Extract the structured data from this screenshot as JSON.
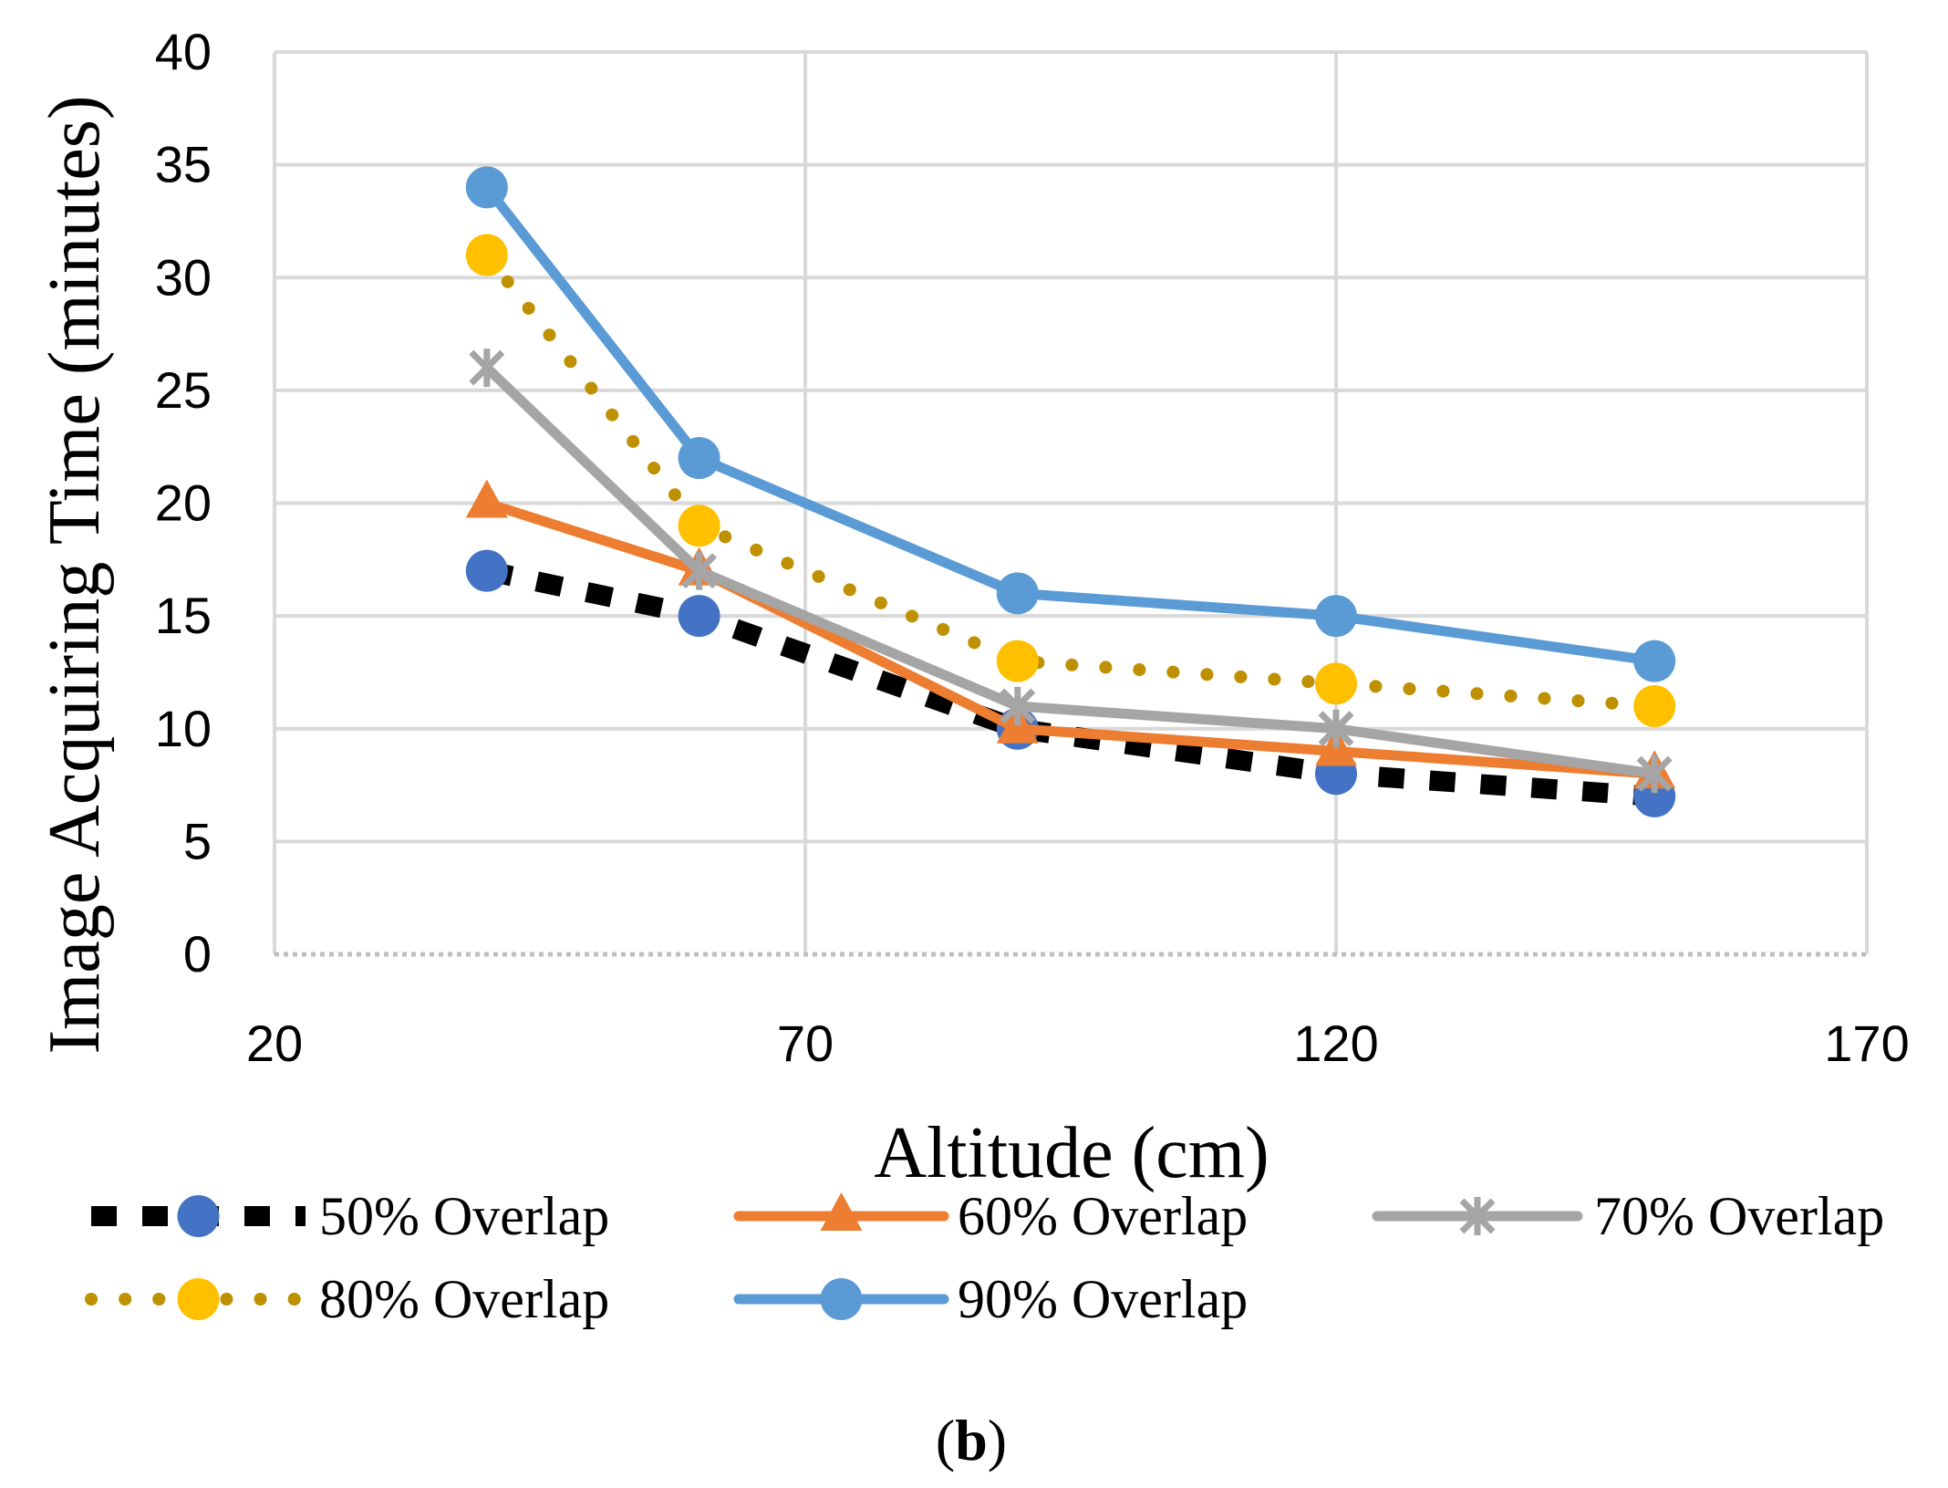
{
  "chart_data": {
    "type": "line",
    "xlabel": "Altitude (cm)",
    "ylabel": "Image Acquiring Time (minutes)",
    "xlim": [
      20,
      170
    ],
    "ylim": [
      0,
      40
    ],
    "x_ticks": [
      20,
      70,
      120,
      170
    ],
    "y_ticks": [
      0,
      5,
      10,
      15,
      20,
      25,
      30,
      35,
      40
    ],
    "grid": true,
    "legend_position": "bottom",
    "x": [
      40,
      60,
      90,
      120,
      150
    ],
    "series": [
      {
        "name": "50% Overlap",
        "values": [
          17,
          15,
          10,
          8,
          7
        ],
        "color": "#000000",
        "marker": "circle",
        "marker_color": "#4472C4",
        "line_style": "dashed"
      },
      {
        "name": "60% Overlap",
        "values": [
          20,
          17,
          10,
          9,
          8
        ],
        "color": "#ED7D31",
        "marker": "triangle",
        "marker_color": "#ED7D31",
        "line_style": "solid"
      },
      {
        "name": "70% Overlap",
        "values": [
          26,
          17,
          11,
          10,
          8
        ],
        "color": "#A5A5A5",
        "marker": "star",
        "marker_color": "#A5A5A5",
        "line_style": "solid"
      },
      {
        "name": "80% Overlap",
        "values": [
          31,
          19,
          13,
          12,
          11
        ],
        "color": "#BF9000",
        "marker": "circle",
        "marker_color": "#FFC000",
        "line_style": "dotted"
      },
      {
        "name": "90% Overlap",
        "values": [
          34,
          22,
          16,
          15,
          13
        ],
        "color": "#5B9BD5",
        "marker": "circle",
        "marker_color": "#5B9BD5",
        "line_style": "solid"
      }
    ],
    "caption_open": "(",
    "caption_label": "b",
    "caption_close": ")"
  }
}
